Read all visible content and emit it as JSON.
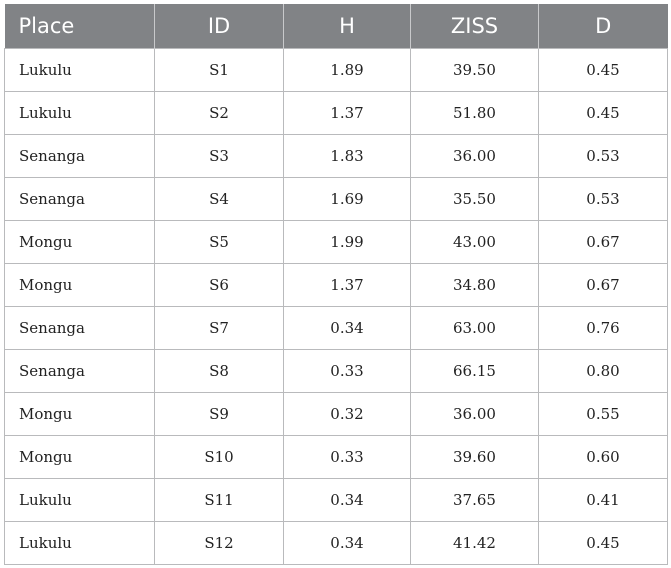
{
  "table": {
    "headers": [
      "Place",
      "ID",
      "H",
      "ZISS",
      "D"
    ],
    "rows": [
      [
        "Lukulu",
        "S1",
        "1.89",
        "39.50",
        "0.45"
      ],
      [
        "Lukulu",
        "S2",
        "1.37",
        "51.80",
        "0.45"
      ],
      [
        "Senanga",
        "S3",
        "1.83",
        "36.00",
        "0.53"
      ],
      [
        "Senanga",
        "S4",
        "1.69",
        "35.50",
        "0.53"
      ],
      [
        "Mongu",
        "S5",
        "1.99",
        "43.00",
        "0.67"
      ],
      [
        "Mongu",
        "S6",
        "1.37",
        "34.80",
        "0.67"
      ],
      [
        "Senanga",
        "S7",
        "0.34",
        "63.00",
        "0.76"
      ],
      [
        "Senanga",
        "S8",
        "0.33",
        "66.15",
        "0.80"
      ],
      [
        "Mongu",
        "S9",
        "0.32",
        "36.00",
        "0.55"
      ],
      [
        "Mongu",
        "S10",
        "0.33",
        "39.60",
        "0.60"
      ],
      [
        "Lukulu",
        "S11",
        "0.34",
        "37.65",
        "0.41"
      ],
      [
        "Lukulu",
        "S12",
        "0.34",
        "41.42",
        "0.45"
      ]
    ]
  },
  "colors": {
    "header_bg": "#818386",
    "header_text": "#ffffff",
    "grid": "#b9babc"
  }
}
